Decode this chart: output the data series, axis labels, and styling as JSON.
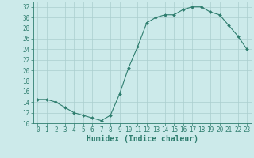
{
  "x": [
    0,
    1,
    2,
    3,
    4,
    5,
    6,
    7,
    8,
    9,
    10,
    11,
    12,
    13,
    14,
    15,
    16,
    17,
    18,
    19,
    20,
    21,
    22,
    23
  ],
  "y": [
    14.5,
    14.5,
    14.0,
    13.0,
    12.0,
    11.5,
    11.0,
    10.5,
    11.5,
    15.5,
    20.5,
    24.5,
    29.0,
    30.0,
    30.5,
    30.5,
    31.5,
    32.0,
    32.0,
    31.0,
    30.5,
    28.5,
    26.5,
    24.0
  ],
  "line_color": "#2e7d6e",
  "marker": "D",
  "marker_size": 2.0,
  "background_color": "#cceaea",
  "grid_color": "#aacece",
  "xlabel": "Humidex (Indice chaleur)",
  "ylim": [
    10,
    33
  ],
  "xlim": [
    -0.5,
    23.5
  ],
  "yticks": [
    10,
    12,
    14,
    16,
    18,
    20,
    22,
    24,
    26,
    28,
    30,
    32
  ],
  "xticks": [
    0,
    1,
    2,
    3,
    4,
    5,
    6,
    7,
    8,
    9,
    10,
    11,
    12,
    13,
    14,
    15,
    16,
    17,
    18,
    19,
    20,
    21,
    22,
    23
  ],
  "xlabel_fontsize": 7,
  "tick_fontsize": 5.5
}
